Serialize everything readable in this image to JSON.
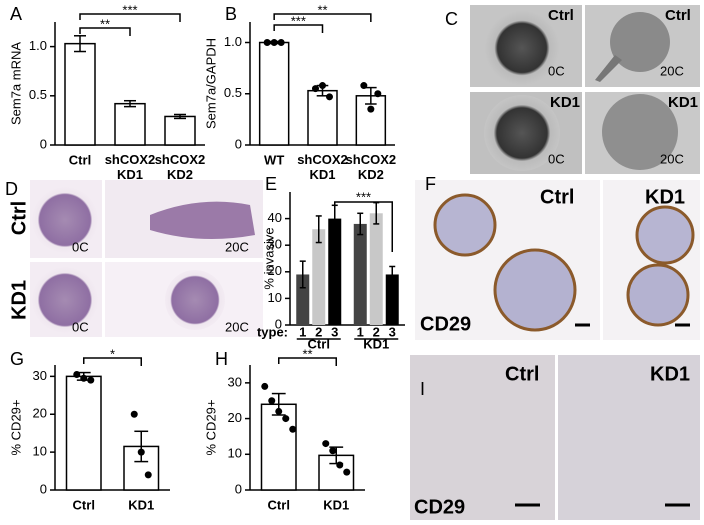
{
  "panel_letters": [
    "A",
    "B",
    "C",
    "D",
    "E",
    "F",
    "G",
    "H",
    "I"
  ],
  "chart_data": [
    {
      "type": "bar",
      "y_label": "Sem7a mRNA",
      "categories": [
        "Ctrl",
        "shCOX2 KD1",
        "shCOX2 KD2"
      ],
      "values": [
        1.03,
        0.42,
        0.29
      ],
      "errors": [
        0.08,
        0.03,
        0.02
      ],
      "ylim": [
        0,
        1.25
      ],
      "yticks": [
        0,
        0.5,
        {
          "value": 1,
          "label": "1.0"
        }
      ],
      "significance": [
        "**",
        "***"
      ]
    },
    {
      "type": "bar",
      "y_label": "Sem7a/GAPDH",
      "categories": [
        "WT",
        "shCOX2 KD1",
        "shCOX2 KD2"
      ],
      "values": [
        1.0,
        0.53,
        0.48
      ],
      "errors": [
        0.01,
        0.05,
        0.08
      ],
      "points": [
        [
          1.0,
          1.0,
          1.0
        ],
        [
          0.55,
          0.58,
          0.47
        ],
        [
          0.58,
          0.35,
          0.5
        ]
      ],
      "ylim": [
        0,
        1.2
      ],
      "yticks": [
        0,
        0.5,
        {
          "value": 1,
          "label": "1.0"
        }
      ],
      "significance": [
        "***",
        "**"
      ]
    },
    {
      "type": "grouped_bar",
      "y_label": "% invasive",
      "x_label": "type:",
      "categories": [
        "Ctrl",
        "KD1"
      ],
      "series": [
        {
          "name": "1",
          "color": "#444444",
          "values": [
            19,
            38
          ],
          "errors": [
            5,
            4
          ]
        },
        {
          "name": "2",
          "color": "#c8c8c8",
          "values": [
            36,
            42
          ],
          "errors": [
            5,
            4
          ]
        },
        {
          "name": "3",
          "color": "#000000",
          "values": [
            40,
            19
          ],
          "errors": [
            5,
            3
          ]
        }
      ],
      "ylim": [
        0,
        50
      ],
      "yticks": [
        0,
        10,
        20,
        30,
        40
      ],
      "significance": [
        "***"
      ]
    },
    {
      "type": "bar",
      "y_label": "% CD29+",
      "categories": [
        "Ctrl",
        "KD1"
      ],
      "values": [
        30,
        11.5
      ],
      "errors": [
        1,
        4
      ],
      "points": [
        [
          30.5,
          29.5,
          29
        ],
        [
          20,
          10,
          4
        ]
      ],
      "ylim": [
        0,
        33
      ],
      "yticks": [
        0,
        10,
        20,
        30
      ],
      "significance": [
        "*"
      ]
    },
    {
      "type": "bar",
      "y_label": "% CD29+",
      "categories": [
        "Ctrl",
        "KD1"
      ],
      "values": [
        24,
        9.7
      ],
      "errors": [
        3,
        2.3
      ],
      "points": [
        [
          29,
          25,
          22,
          20,
          17
        ],
        [
          13,
          11,
          7,
          5
        ]
      ],
      "ylim": [
        0,
        35
      ],
      "yticks": [
        0,
        10,
        20,
        30
      ],
      "significance": [
        "**"
      ]
    }
  ],
  "micrographs": {
    "C": [
      "Ctrl",
      "0C",
      "Ctrl",
      "20C",
      "KD1",
      "0C",
      "KD1",
      "20C"
    ],
    "D": {
      "rows": [
        "Ctrl",
        "KD1"
      ],
      "labels": [
        "0C",
        "20C",
        "0C",
        "20C"
      ]
    },
    "F": [
      "Ctrl",
      "KD1",
      "CD29"
    ],
    "I": [
      "Ctrl",
      "KD1",
      "CD29"
    ]
  }
}
